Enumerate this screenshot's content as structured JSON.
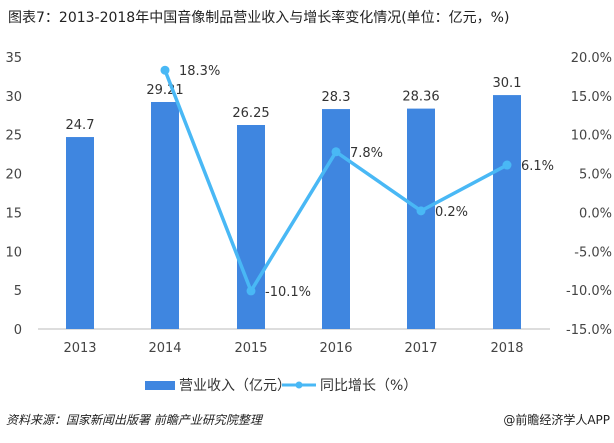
{
  "chart_data": {
    "type": "bar+line",
    "title": "图表7：2013-2018年中国音像制品营业收入与增长率变化情况(单位：亿元，%)",
    "categories": [
      "2013",
      "2014",
      "2015",
      "2016",
      "2017",
      "2018"
    ],
    "series": [
      {
        "name": "营业收入（亿元）",
        "type": "bar",
        "axis": "left",
        "values": [
          24.7,
          29.21,
          26.25,
          28.3,
          28.36,
          30.1
        ],
        "labels": [
          "24.7",
          "29.21",
          "26.25",
          "28.3",
          "28.36",
          "30.1"
        ],
        "color": "#3f86e0"
      },
      {
        "name": "同比增长（%）",
        "type": "line",
        "axis": "right",
        "values": [
          null,
          18.3,
          -10.1,
          7.8,
          0.2,
          6.1
        ],
        "labels": [
          "",
          "18.3%",
          "-10.1%",
          "7.8%",
          "0.2%",
          "6.1%"
        ],
        "color": "#49b8f5"
      }
    ],
    "left_axis": {
      "ylim": [
        0,
        35
      ],
      "ticks": [
        "0",
        "5",
        "10",
        "15",
        "20",
        "25",
        "30",
        "35"
      ]
    },
    "right_axis": {
      "ylim": [
        -15,
        20
      ],
      "ticks": [
        "-15.0%",
        "-10.0%",
        "-5.0%",
        "0.0%",
        "5.0%",
        "10.0%",
        "15.0%",
        "20.0%"
      ]
    },
    "legend_position": "bottom",
    "grid": false
  },
  "footer": {
    "source": "资料来源：国家新闻出版署 前瞻产业研究院整理",
    "brand": "@前瞻经济学人APP"
  }
}
